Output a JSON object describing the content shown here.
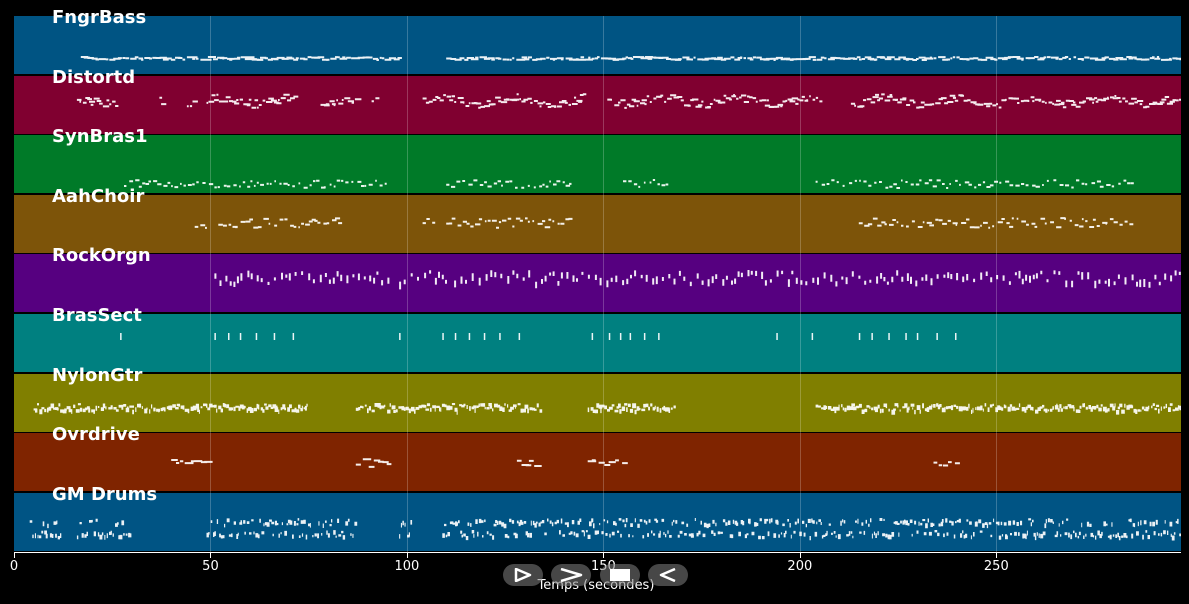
{
  "time_axis": {
    "label": "Temps (secondes)",
    "min": 0,
    "max": 297,
    "ticks": [
      "0",
      "50",
      "100",
      "150",
      "200",
      "250"
    ]
  },
  "tracks": [
    {
      "name": "FngrBass",
      "color": "#005483",
      "pattern": "bass"
    },
    {
      "name": "Distortd",
      "color": "#800030",
      "pattern": "melody"
    },
    {
      "name": "SynBras1",
      "color": "#007a28",
      "pattern": "sparse"
    },
    {
      "name": "AahChoir",
      "color": "#7d5409",
      "pattern": "choir"
    },
    {
      "name": "RockOrgn",
      "color": "#560080",
      "pattern": "organ"
    },
    {
      "name": "BrasSect",
      "color": "#008080",
      "pattern": "brass"
    },
    {
      "name": "NylonGtr",
      "color": "#807f00",
      "pattern": "guitar"
    },
    {
      "name": "Ovrdrive",
      "color": "#7f2400",
      "pattern": "overdrive"
    },
    {
      "name": "GM Drums",
      "color": "#005484",
      "pattern": "drums"
    }
  ],
  "controls": [
    {
      "name": "play-button",
      "icon": "play-outline-icon"
    },
    {
      "name": "forward-button",
      "icon": "chevron-right-icon"
    },
    {
      "name": "stop-button",
      "icon": "stop-icon"
    },
    {
      "name": "rewind-button",
      "icon": "rewind-icon"
    }
  ]
}
